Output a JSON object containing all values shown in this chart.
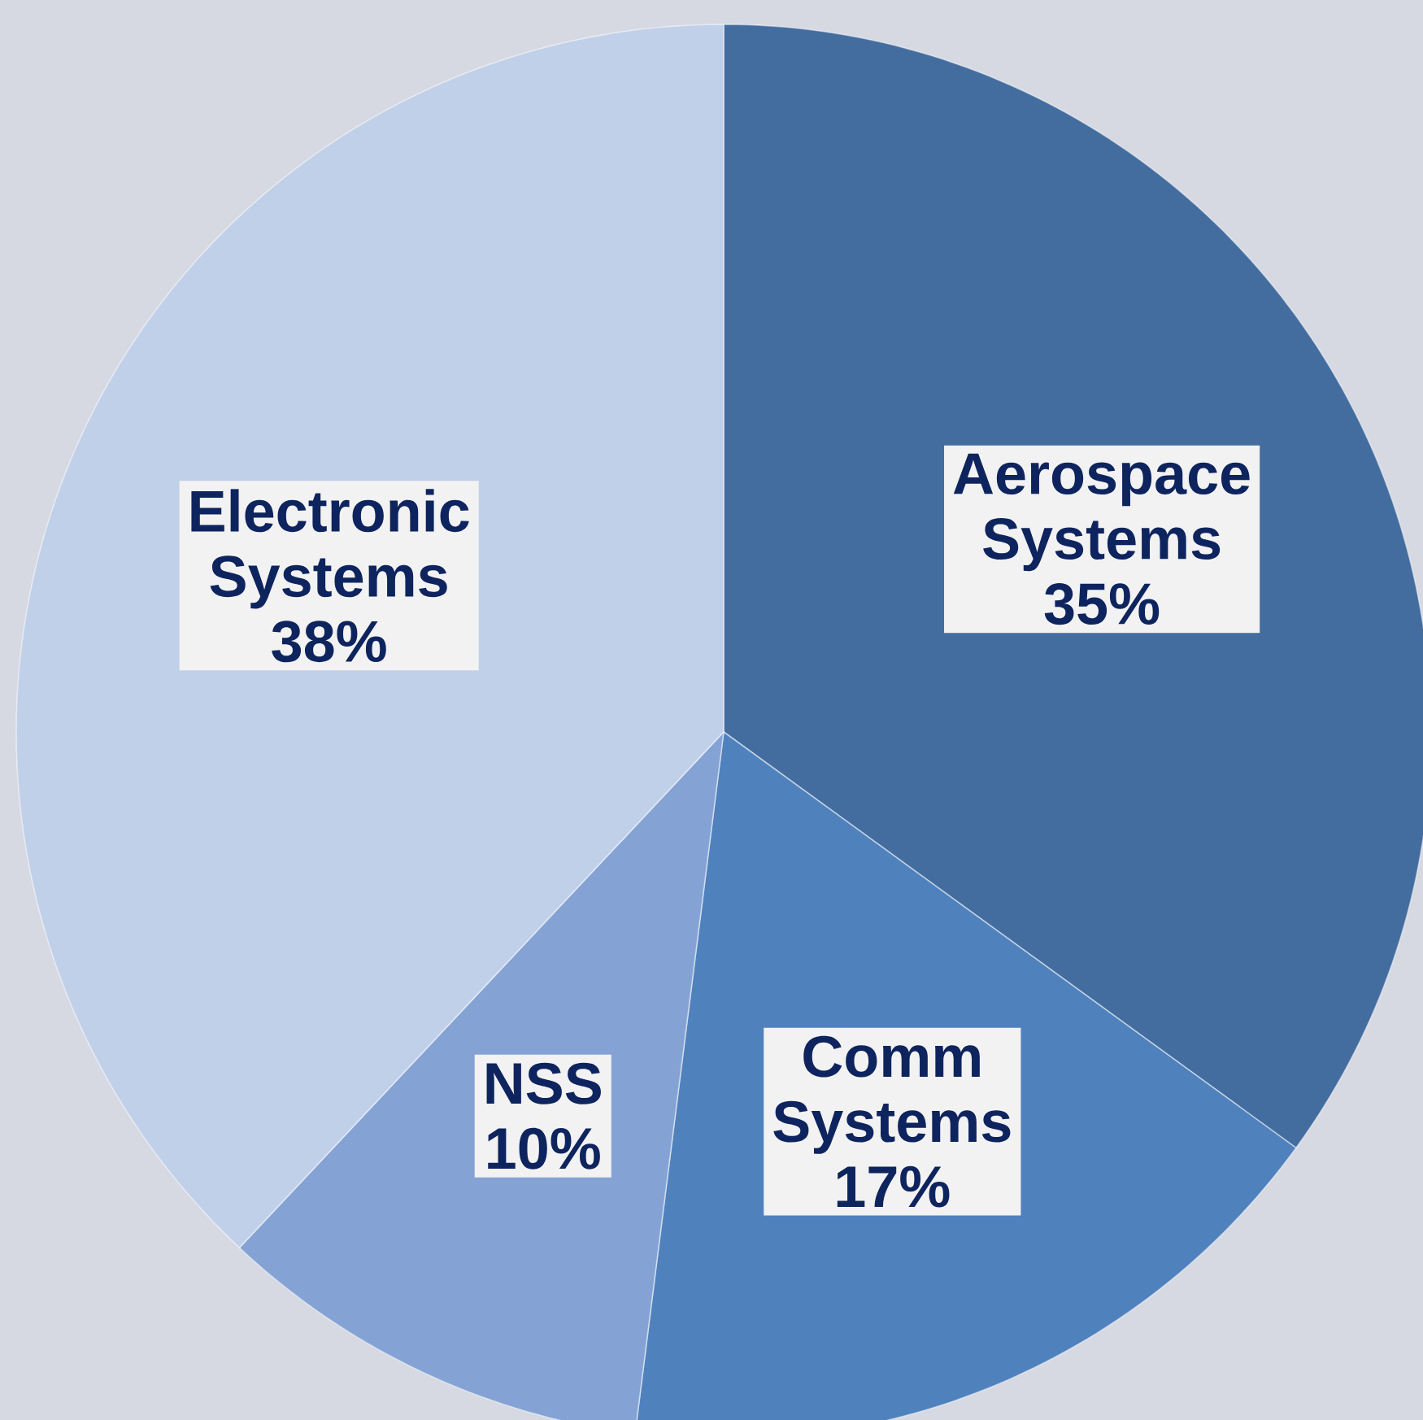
{
  "chart_data": {
    "type": "pie",
    "categories": [
      "Aerospace Systems",
      "Comm Systems",
      "NSS",
      "Electronic Systems"
    ],
    "values": [
      35,
      17,
      10,
      38
    ],
    "value_labels": [
      "35%",
      "17%",
      "10%",
      "38%"
    ],
    "colors": [
      "#436d9f",
      "#4f81bd",
      "#84a3d4",
      "#c1d0e9"
    ]
  }
}
